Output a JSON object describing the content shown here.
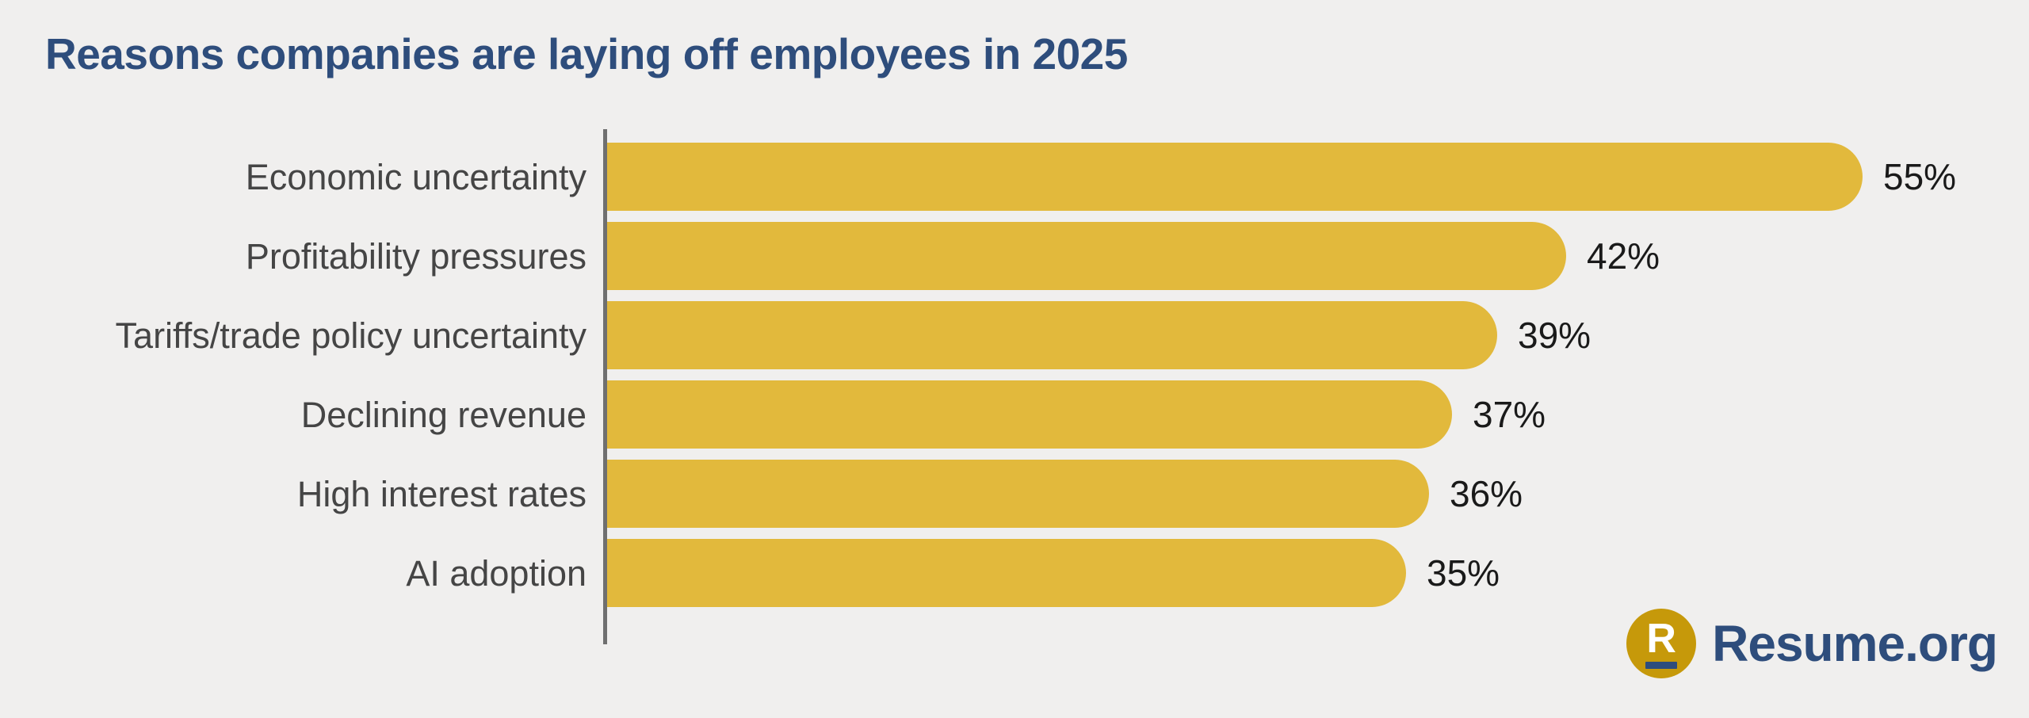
{
  "title": "Reasons companies are laying off employees in 2025",
  "chart_data": {
    "type": "bar",
    "orientation": "horizontal",
    "title": "Reasons companies are laying off employees in 2025",
    "categories": [
      "Economic uncertainty",
      "Profitability pressures",
      "Tariffs/trade policy uncertainty",
      "Declining revenue",
      "High interest rates",
      "AI adoption"
    ],
    "values": [
      55,
      42,
      39,
      37,
      36,
      35
    ],
    "value_labels": [
      "55%",
      "42%",
      "39%",
      "37%",
      "36%",
      "35%"
    ],
    "unit": "%",
    "xlim": [
      0,
      60
    ],
    "grid": false,
    "legend": "none",
    "bar_color": "#e2b93c"
  },
  "brand": {
    "monogram": "R",
    "wordmark": "Resume.org"
  },
  "colors": {
    "background": "#f0efee",
    "bar": "#e2b93c",
    "title": "#2e4d7c",
    "label": "#454545",
    "value": "#1a1a1a",
    "axis": "#6f6f6f",
    "logo-gold": "#c6990a",
    "logo-navy": "#2e4d7c",
    "monogram": "#ffffff"
  }
}
